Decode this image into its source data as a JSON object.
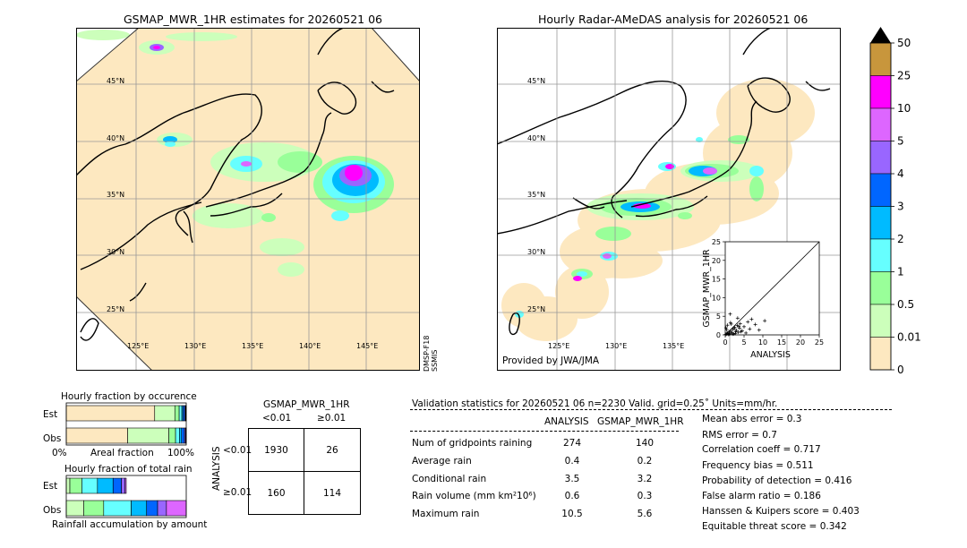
{
  "left_map": {
    "title": "GSMAP_MWR_1HR estimates for 20260521 06",
    "lat_labels": [
      "45°N",
      "40°N",
      "35°N",
      "30°N",
      "25°N"
    ],
    "lon_labels": [
      "125°E",
      "130°E",
      "135°E",
      "140°E",
      "145°E"
    ],
    "satellite_label": "DMSP-F18\nSSMIS"
  },
  "right_map": {
    "title": "Hourly Radar-AMeDAS analysis for 20260521 06",
    "lat_labels": [
      "45°N",
      "40°N",
      "35°N",
      "30°N",
      "25°N"
    ],
    "lon_labels": [
      "125°E",
      "130°E",
      "135°E"
    ],
    "credit": "Provided by JWA/JMA"
  },
  "colorbar": {
    "labels": [
      "50",
      "25",
      "10",
      "5",
      "4",
      "3",
      "2",
      "1",
      "0.5",
      "0.01",
      "0"
    ],
    "colors": [
      "#c8963c",
      "#ff00ff",
      "#dd66ff",
      "#9966ff",
      "#0066ff",
      "#00bbff",
      "#66ffff",
      "#99ff99",
      "#ccffbb",
      "#fde8c0"
    ]
  },
  "chart_data": [
    {
      "type": "scatter",
      "title": "",
      "xlabel": "ANALYSIS",
      "ylabel": "GSMAP_MWR_1HR",
      "xlim": [
        0,
        25
      ],
      "ylim": [
        0,
        25
      ],
      "xticks": [
        "0",
        "5",
        "10",
        "15",
        "20",
        "25"
      ],
      "yticks": [
        "0",
        "5",
        "10",
        "15",
        "20",
        "25"
      ],
      "x": [
        0.1,
        0.3,
        0.5,
        0.7,
        1.0,
        1.2,
        1.5,
        1.8,
        2.0,
        2.2,
        2.5,
        2.8,
        3.0,
        3.2,
        3.5,
        3.8,
        4.0,
        4.5,
        5.0,
        5.5,
        6.0,
        6.5,
        7.0,
        8.0,
        9.0,
        10.5,
        0.2,
        0.6,
        1.1,
        1.4,
        2.4,
        3.3,
        4.2,
        0.9,
        1.6,
        2.7,
        3.6,
        0.4,
        1.3,
        2.1
      ],
      "y": [
        0.1,
        0.2,
        0.5,
        0.3,
        0.8,
        0.4,
        1.0,
        0.6,
        1.5,
        0.3,
        2.0,
        0.9,
        1.2,
        2.5,
        0.7,
        1.8,
        3.0,
        1.1,
        2.2,
        0.5,
        3.5,
        1.6,
        4.2,
        2.8,
        1.3,
        3.8,
        1.9,
        2.6,
        0.2,
        3.3,
        1.7,
        4.5,
        0.9,
        0.1,
        2.9,
        0.4,
        2.3,
        1.4,
        5.6,
        0.2
      ]
    },
    {
      "type": "bar",
      "title": "Hourly fraction by occurence",
      "categories": [
        "Est",
        "Obs"
      ],
      "xlabel": "Areal fraction",
      "x_ticks": [
        "0%",
        "100%"
      ],
      "series": [
        {
          "color": "#fde8c0",
          "values": [
            0.737,
            0.512
          ]
        },
        {
          "color": "#ccffbb",
          "values": [
            0.168,
            0.343
          ]
        },
        {
          "color": "#99ff99",
          "values": [
            0.036,
            0.056
          ]
        },
        {
          "color": "#66ffff",
          "values": [
            0.022,
            0.032
          ]
        },
        {
          "color": "#00bbff",
          "values": [
            0.011,
            0.018
          ]
        },
        {
          "color": "#0066ff",
          "values": [
            0.014,
            0.024
          ]
        },
        {
          "color": "#9966ff",
          "values": [
            0.006,
            0.009
          ]
        },
        {
          "color": "#dd66ff",
          "values": [
            0.004,
            0.004
          ]
        },
        {
          "color": "#ff00ff",
          "values": [
            0.002,
            0.002
          ]
        }
      ]
    },
    {
      "type": "bar",
      "title": "Hourly fraction of total rain",
      "categories": [
        "Est",
        "Obs"
      ],
      "xlabel": "Rainfall accumulation by amount",
      "series": [
        {
          "color": "#ccffbb",
          "values": [
            0.03,
            0.16
          ]
        },
        {
          "color": "#99ff99",
          "values": [
            0.1,
            0.18
          ]
        },
        {
          "color": "#66ffff",
          "values": [
            0.13,
            0.25
          ]
        },
        {
          "color": "#00bbff",
          "values": [
            0.13,
            0.14
          ]
        },
        {
          "color": "#0066ff",
          "values": [
            0.07,
            0.1
          ]
        },
        {
          "color": "#9966ff",
          "values": [
            0.03,
            0.08
          ]
        },
        {
          "color": "#dd66ff",
          "values": [
            0.01,
            0.18
          ]
        }
      ]
    }
  ],
  "contingency": {
    "title": "GSMAP_MWR_1HR",
    "col_labels": [
      "<0.01",
      "≥0.01"
    ],
    "row_axis": "ANALYSIS",
    "row_labels": [
      "<0.01",
      "≥0.01"
    ],
    "cells": [
      [
        "1930",
        "26"
      ],
      [
        "160",
        "114"
      ]
    ]
  },
  "validation": {
    "header": "Validation statistics for 20260521 06  n=2230 Valid. grid=0.25˚ Units=mm/hr.",
    "col_headers": [
      "ANALYSIS",
      "GSMAP_MWR_1HR"
    ],
    "rows": [
      {
        "label": "Num of gridpoints raining",
        "a": "274",
        "b": "140"
      },
      {
        "label": "Average rain",
        "a": "0.4",
        "b": "0.2"
      },
      {
        "label": "Conditional rain",
        "a": "3.5",
        "b": "3.2"
      },
      {
        "label": "Rain volume (mm km²10⁶)",
        "a": "0.6",
        "b": "0.3"
      },
      {
        "label": "Maximum rain",
        "a": "10.5",
        "b": "5.6"
      }
    ],
    "scores": [
      "Mean abs error =    0.3",
      "RMS error =    0.7",
      "Correlation coeff =  0.717",
      "Frequency bias =  0.511",
      "Probability of detection =  0.416",
      "False alarm ratio =  0.186",
      "Hanssen & Kuipers score =  0.403",
      "Equitable threat score =  0.342"
    ]
  }
}
